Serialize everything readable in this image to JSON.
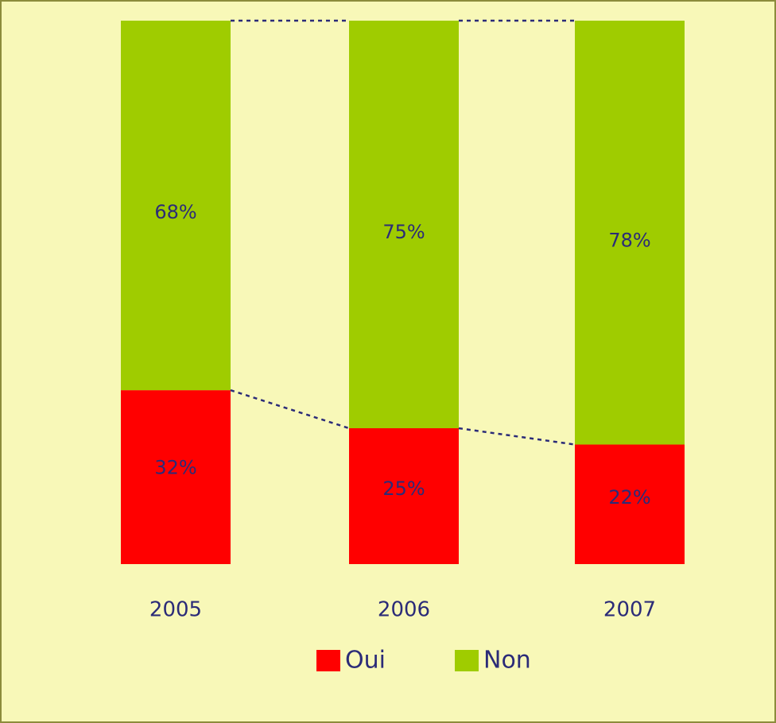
{
  "chart_data": {
    "type": "stacked_bar",
    "categories": [
      "2005",
      "2006",
      "2007"
    ],
    "series": [
      {
        "name": "Oui",
        "color": "#ff0000",
        "values": [
          32,
          25,
          22
        ],
        "value_labels": [
          "32%",
          "25%",
          "22%"
        ]
      },
      {
        "name": "Non",
        "color": "#9fcc00",
        "values": [
          68,
          75,
          78
        ],
        "value_labels": [
          "68%",
          "75%",
          "78%"
        ]
      }
    ],
    "legend": "bottom"
  }
}
